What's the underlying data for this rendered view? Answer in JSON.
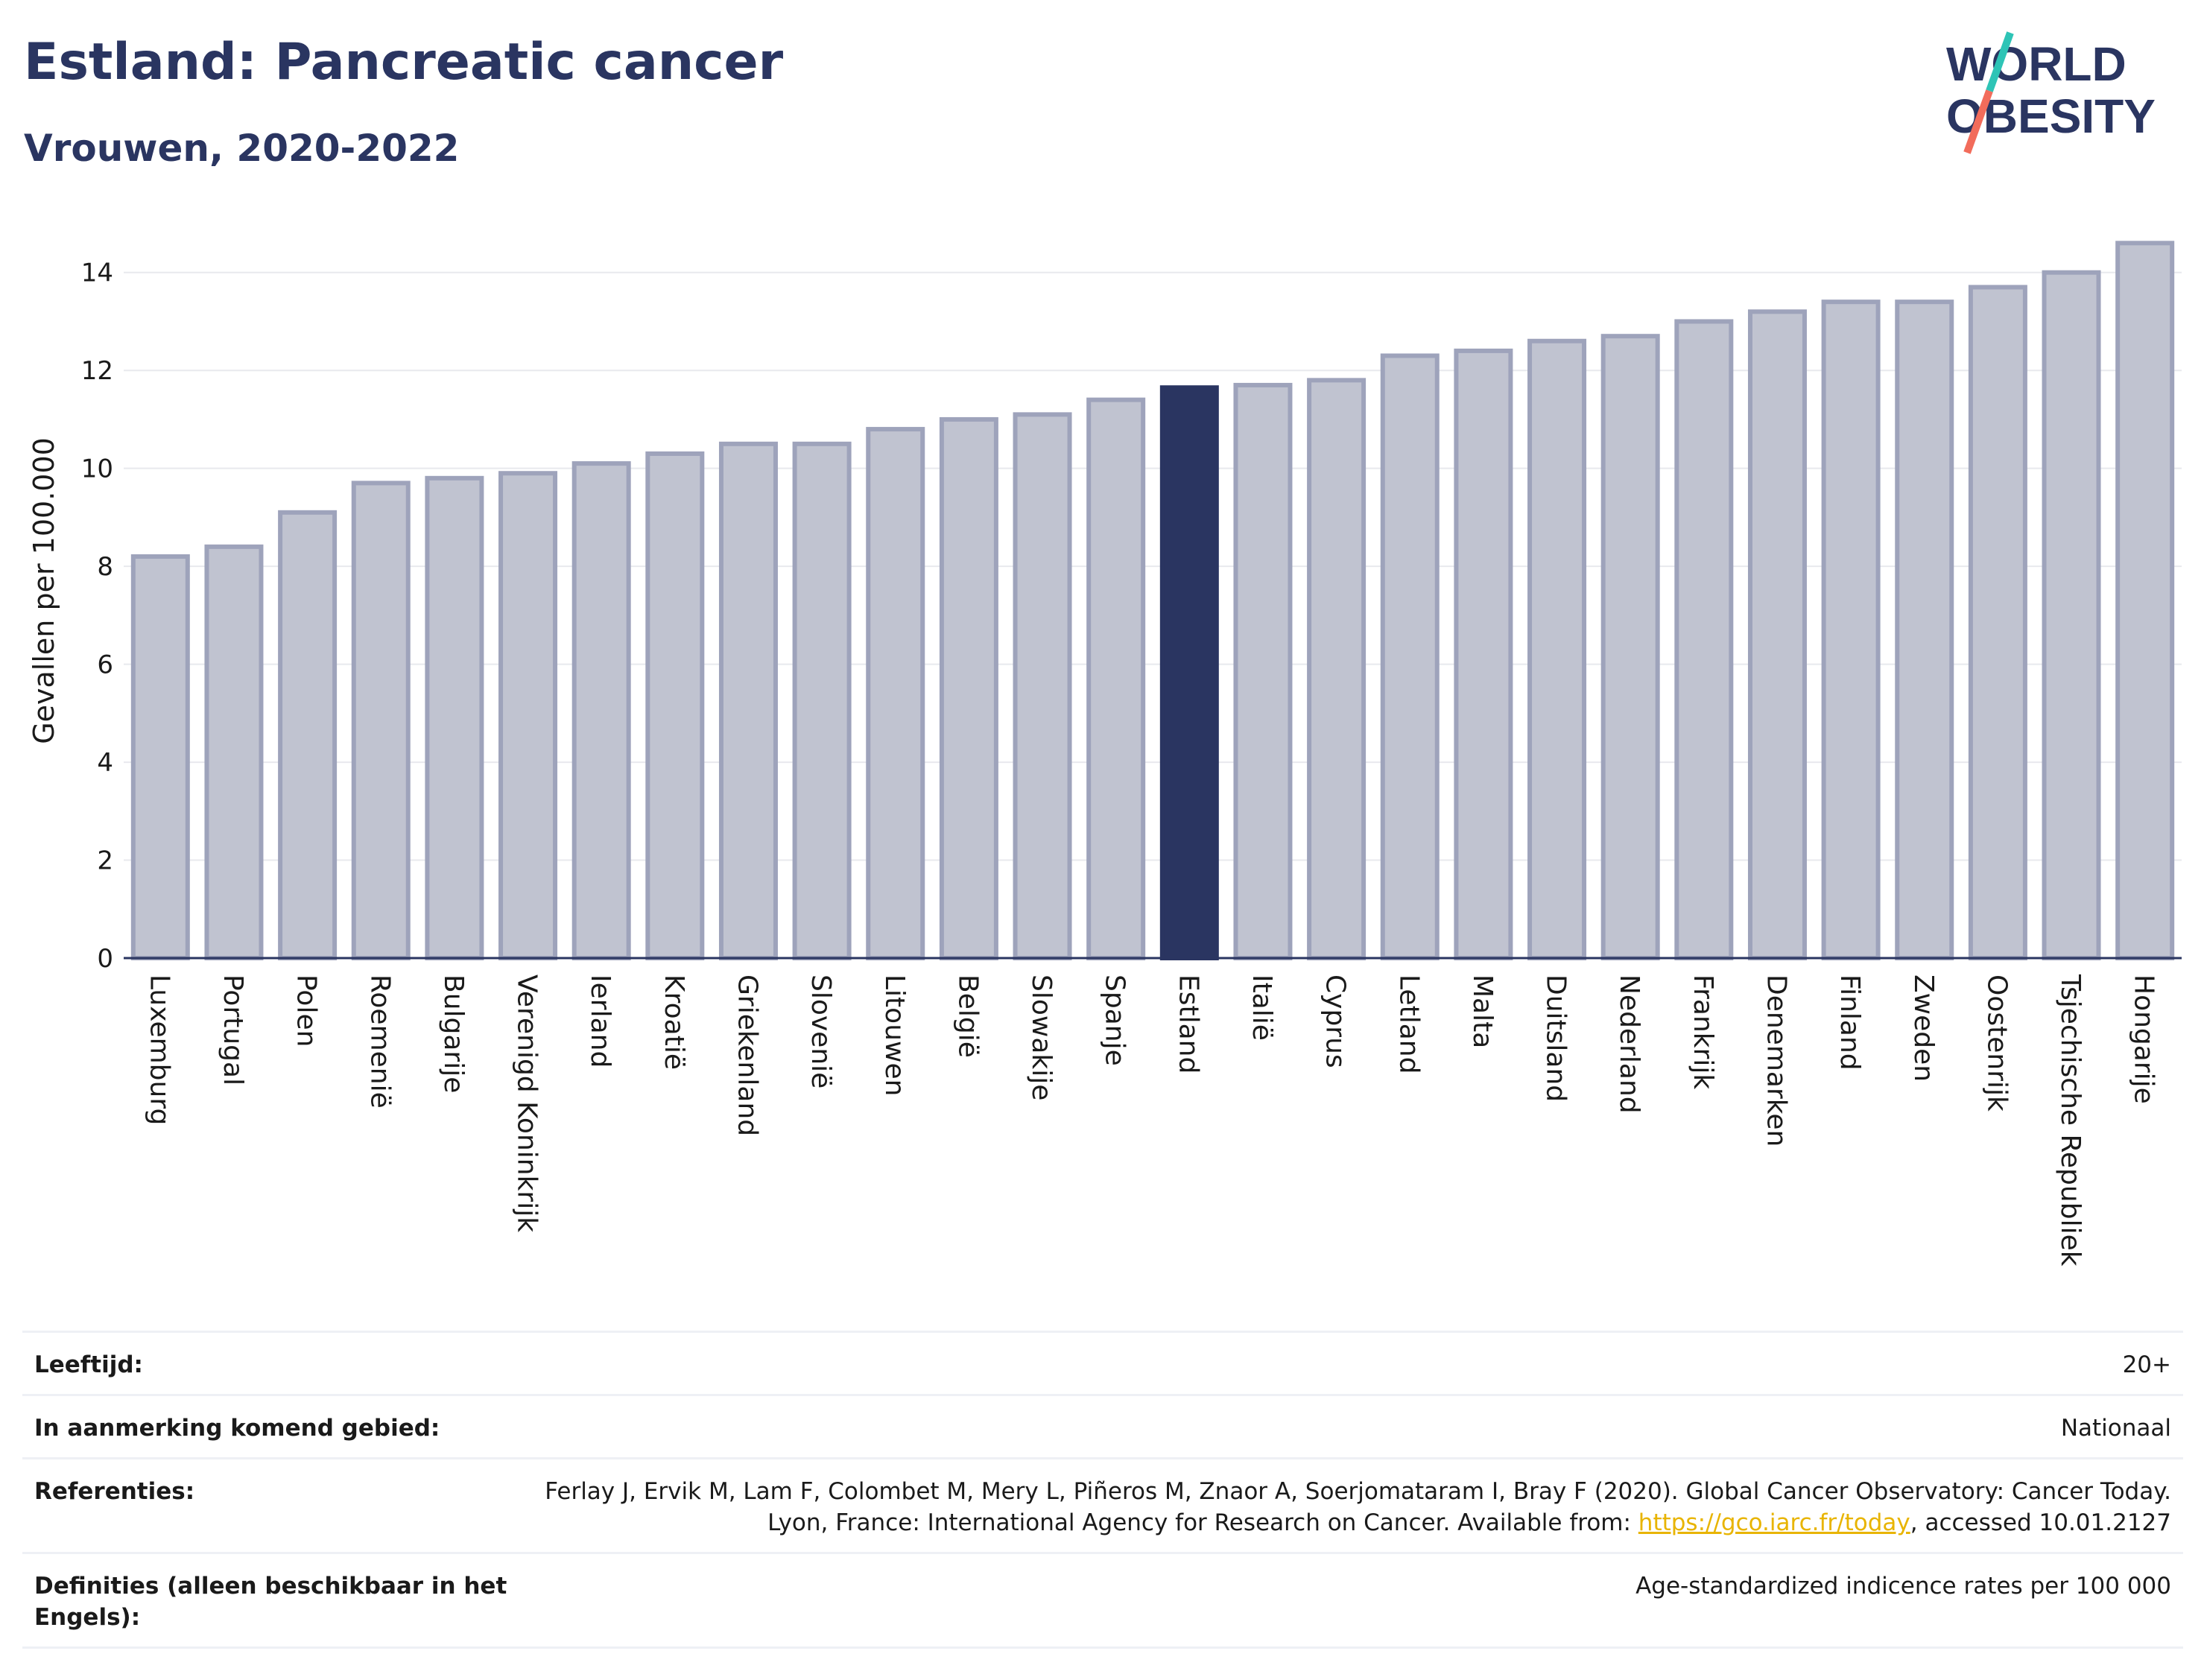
{
  "header": {
    "title": "Estland: Pancreatic cancer",
    "subtitle": "Vrouwen, 2020-2022",
    "logo_line1": "WORLD",
    "logo_line2": "OBESITY"
  },
  "chart_data": {
    "type": "bar",
    "title": "Estland: Pancreatic cancer",
    "subtitle": "Vrouwen, 2020-2022",
    "ylabel": "Gevallen per 100.000",
    "xlabel": "",
    "ylim": [
      0,
      15
    ],
    "yticks": [
      0,
      2,
      4,
      6,
      8,
      10,
      12,
      14
    ],
    "grid": true,
    "categories": [
      "Luxemburg",
      "Portugal",
      "Polen",
      "Roemenië",
      "Bulgarije",
      "Verenigd Koninkrijk",
      "Ierland",
      "Kroatië",
      "Griekenland",
      "Slovenië",
      "Litouwen",
      "België",
      "Slowakije",
      "Spanje",
      "Estland",
      "Italië",
      "Cyprus",
      "Letland",
      "Malta",
      "Duitsland",
      "Nederland",
      "Frankrijk",
      "Denemarken",
      "Finland",
      "Zweden",
      "Oostenrijk",
      "Tsjechische Republiek",
      "Hongarije"
    ],
    "values": [
      8.2,
      8.4,
      9.1,
      9.7,
      9.8,
      9.9,
      10.1,
      10.3,
      10.5,
      10.5,
      10.8,
      11.0,
      11.1,
      11.4,
      11.65,
      11.7,
      11.8,
      12.3,
      12.4,
      12.6,
      12.7,
      13.0,
      13.2,
      13.4,
      13.4,
      13.7,
      14.0,
      14.6
    ],
    "highlight": "Estland",
    "colors": {
      "bar": "#c0c3d0",
      "bar_border": "#9ea3bb",
      "highlight": "#2a3561",
      "grid": "#e8e9ee",
      "axis": "#2a3561"
    }
  },
  "info": [
    {
      "label": "Leeftijd:",
      "value": "20+"
    },
    {
      "label": "In aanmerking komend gebied:",
      "value": "Nationaal"
    },
    {
      "label": "Referenties:",
      "value_pre": "Ferlay J, Ervik M, Lam F, Colombet M, Mery L, Piñeros M, Znaor A, Soerjomataram I, Bray F (2020). Global Cancer Observatory: Cancer Today. Lyon, France: International Agency for Research on Cancer. Available from: ",
      "link": "https://gco.iarc.fr/today",
      "value_post": ", accessed 10.01.2127"
    },
    {
      "label": "Definities (alleen beschikbaar in het Engels):",
      "value": "Age-standardized indicence rates per 100 000"
    }
  ]
}
